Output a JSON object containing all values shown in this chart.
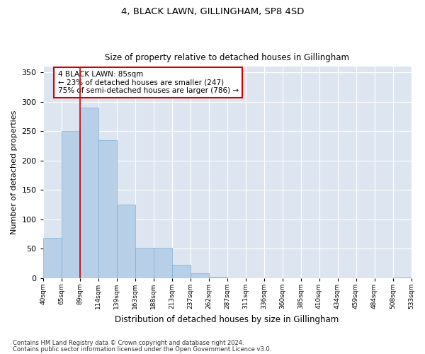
{
  "title1": "4, BLACK LAWN, GILLINGHAM, SP8 4SD",
  "title2": "Size of property relative to detached houses in Gillingham",
  "xlabel": "Distribution of detached houses by size in Gillingham",
  "ylabel": "Number of detached properties",
  "bar_values": [
    68,
    250,
    290,
    235,
    125,
    52,
    52,
    23,
    8,
    2,
    0,
    0,
    0,
    0,
    0,
    0,
    0,
    0,
    0,
    1
  ],
  "bar_labels": [
    "40sqm",
    "65sqm",
    "89sqm",
    "114sqm",
    "139sqm",
    "163sqm",
    "188sqm",
    "213sqm",
    "237sqm",
    "262sqm",
    "287sqm",
    "311sqm",
    "336sqm",
    "360sqm",
    "385sqm",
    "410sqm",
    "434sqm",
    "459sqm",
    "484sqm",
    "508sqm",
    "533sqm"
  ],
  "bar_color": "#b8cfe8",
  "bar_edge_color": "#7aafd4",
  "background_color": "#dde6f0",
  "grid_color": "#ffffff",
  "red_line_color": "#cc0000",
  "annotation_text": "4 BLACK LAWN: 85sqm\n← 23% of detached houses are smaller (247)\n75% of semi-detached houses are larger (786) →",
  "annotation_box_color": "#ffffff",
  "annotation_edge_color": "#cc0000",
  "ylim": [
    0,
    360
  ],
  "yticks": [
    0,
    50,
    100,
    150,
    200,
    250,
    300,
    350
  ],
  "footer1": "Contains HM Land Registry data © Crown copyright and database right 2024.",
  "footer2": "Contains public sector information licensed under the Open Government Licence v3.0."
}
